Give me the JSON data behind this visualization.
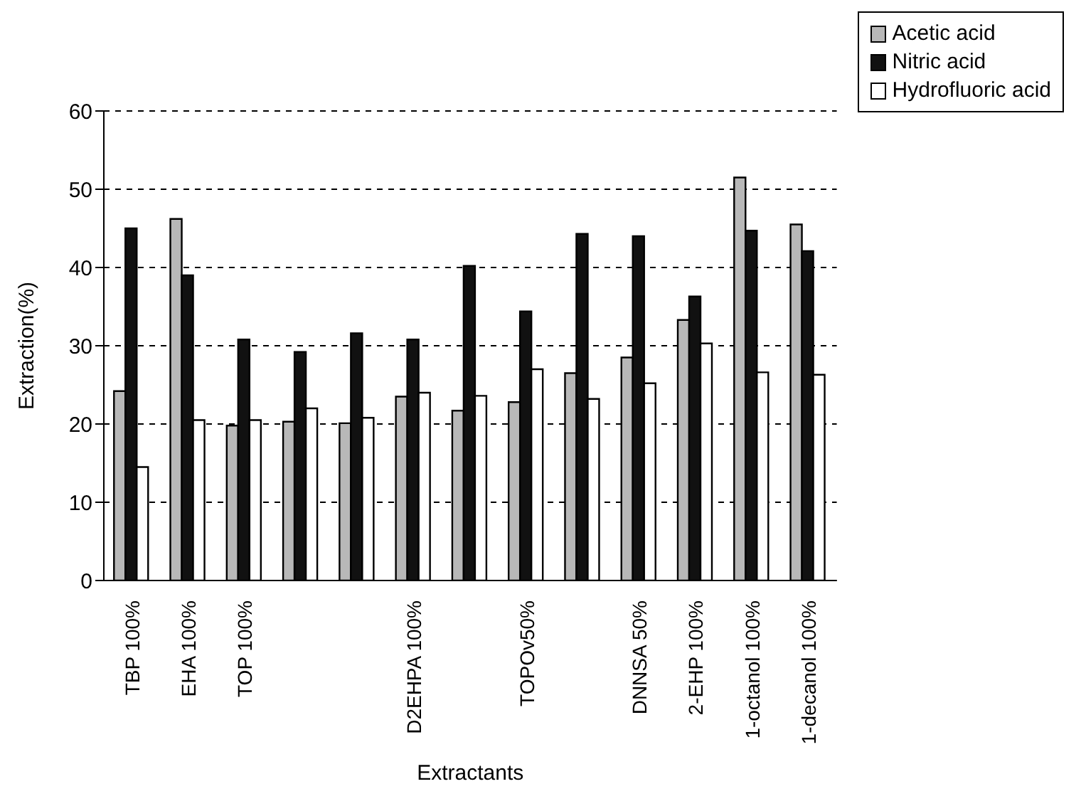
{
  "chart_data": {
    "type": "bar",
    "xlabel": "Extractants",
    "ylabel": "Extraction(%)",
    "categories": [
      "TBP 100%",
      "EHA 100%",
      "TOP 100%",
      null,
      null,
      "D2EHPA 100%",
      null,
      "TOPOv50%",
      null,
      "DNNSA 50%",
      "2-EHP 100%",
      "1-octanol 100%",
      "1-decanol 100%"
    ],
    "series": [
      {
        "name": "Acetic acid",
        "color": "#b8b8b8",
        "values": [
          24.2,
          46.2,
          19.8,
          20.3,
          20.1,
          23.5,
          21.7,
          22.8,
          26.5,
          28.5,
          33.3,
          51.5,
          45.5
        ]
      },
      {
        "name": "Nitric acid",
        "color": "#111111",
        "values": [
          45,
          39,
          30.8,
          29.2,
          31.6,
          30.8,
          40.2,
          34.4,
          44.3,
          44,
          36.3,
          44.7,
          42.1
        ]
      },
      {
        "name": "Hydrofluoric acid",
        "color": "#ffffff",
        "values": [
          14.5,
          20.5,
          20.5,
          22,
          20.8,
          24,
          23.6,
          27,
          23.2,
          25.2,
          30.3,
          26.6,
          26.3
        ]
      }
    ],
    "ylim": [
      0,
      60
    ],
    "yticks": [
      0,
      10,
      20,
      30,
      40,
      50,
      60
    ],
    "grid": "y",
    "legend": "top right"
  }
}
